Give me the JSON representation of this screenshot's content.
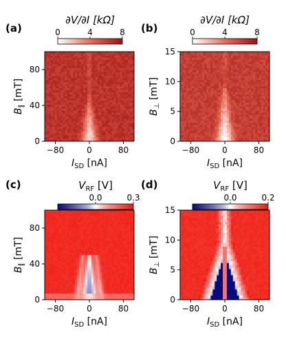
{
  "chart_data": [
    {
      "id": "a",
      "type": "heatmap",
      "panel_label": "(a)",
      "colorbar_title": "∂V/∂I [kΩ]",
      "colorbar_ticks": [
        "0",
        "4",
        "8"
      ],
      "colorbar_range": [
        0,
        8
      ],
      "colormap": "white-red",
      "xlabel": "I_SD [nA]",
      "xlabel_main": "I",
      "xlabel_sub": "SD",
      "xlabel_unit": " [nA]",
      "ylabel_main": "B",
      "ylabel_sub": "∥",
      "ylabel_unit": " [mT]",
      "xticks": [
        "−80",
        "0",
        "80"
      ],
      "yticks": [
        "0",
        "40",
        "80"
      ],
      "xlim": [
        -105,
        105
      ],
      "ylim": [
        0,
        100
      ],
      "background_value": 6.5,
      "feature": "narrow low-resistance dip centered at I_SD = 0, widening toward B = 0"
    },
    {
      "id": "b",
      "type": "heatmap",
      "panel_label": "(b)",
      "colorbar_title": "∂V/∂I [kΩ]",
      "colorbar_ticks": [
        "0",
        "4",
        "8"
      ],
      "colorbar_range": [
        0,
        8
      ],
      "colormap": "white-red",
      "xlabel": "I_SD [nA]",
      "xlabel_main": "I",
      "xlabel_sub": "SD",
      "xlabel_unit": " [nA]",
      "ylabel_main": "B",
      "ylabel_sub": "⊥",
      "ylabel_unit": " [mT]",
      "xticks": [
        "−80",
        "0",
        "80"
      ],
      "yticks": [
        "0",
        "5",
        "10",
        "15"
      ],
      "xlim": [
        -105,
        105
      ],
      "ylim": [
        0,
        15
      ],
      "background_value": 6.0,
      "feature": "low-resistance region near I_SD = 0 below ~9 mT"
    },
    {
      "id": "c",
      "type": "heatmap",
      "panel_label": "(c)",
      "colorbar_title": "V_RF [V]",
      "colorbar_main": "V",
      "colorbar_sub": "RF",
      "colorbar_unit": " [V]",
      "colorbar_ticks": [
        "0.0",
        "0.3"
      ],
      "colorbar_range": [
        -0.3,
        0.3
      ],
      "colormap": "blue-white-red",
      "xlabel": "I_SD [nA]",
      "xlabel_main": "I",
      "xlabel_sub": "SD",
      "xlabel_unit": " [nA]",
      "ylabel_main": "B",
      "ylabel_sub": "∥",
      "ylabel_unit": " [mT]",
      "xticks": [
        "−80",
        "0",
        "80"
      ],
      "yticks": [
        "0",
        "40",
        "80"
      ],
      "xlim": [
        -105,
        105
      ],
      "ylim": [
        0,
        100
      ],
      "background_value": 0.3,
      "feature": "white/blue V-shaped region near I_SD = 0 below ~50 mT"
    },
    {
      "id": "d",
      "type": "heatmap",
      "panel_label": "(d)",
      "colorbar_title": "V_RF [V]",
      "colorbar_main": "V",
      "colorbar_sub": "RF",
      "colorbar_unit": " [V]",
      "colorbar_ticks": [
        "0.0",
        "0.2"
      ],
      "colorbar_range": [
        -0.2,
        0.2
      ],
      "colormap": "blue-white-red",
      "xlabel": "I_SD [nA]",
      "xlabel_main": "I",
      "xlabel_sub": "SD",
      "xlabel_unit": " [nA]",
      "ylabel_main": "B",
      "ylabel_sub": "⊥",
      "ylabel_unit": " [mT]",
      "xticks": [
        "−80",
        "0",
        "80"
      ],
      "yticks": [
        "0",
        "5",
        "10",
        "15"
      ],
      "xlim": [
        -105,
        105
      ],
      "ylim": [
        0,
        15
      ],
      "background_value": 0.2,
      "feature": "dark blue triangular region near I_SD = 0 below ~10 mT"
    }
  ],
  "colors": {
    "red_max": "#a01010",
    "red_field": "#e05545",
    "white": "#ffffff",
    "blue_max": "#0a0a7a",
    "rf_red": "#f01a10"
  }
}
